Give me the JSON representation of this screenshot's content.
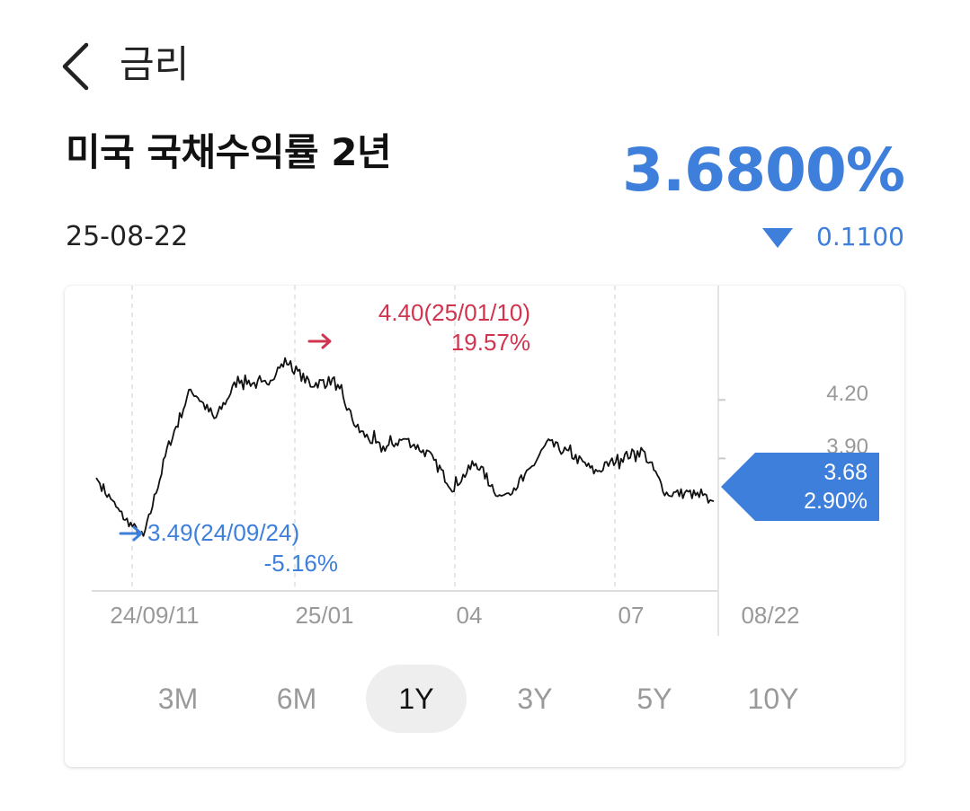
{
  "header": {
    "title": "금리",
    "back_icon": "chevron-left-icon"
  },
  "instrument": {
    "name": "미국 국채수익률 2년",
    "date": "25-08-22",
    "price": "3.6800%",
    "change": "0.1100",
    "change_direction": "down",
    "change_icon": "triangle-down-icon"
  },
  "colors": {
    "accent_blue": "#3d7fdb",
    "high_red": "#d0344e",
    "line": "#111111",
    "grid": "#dddddd"
  },
  "chart": {
    "high_annotation": {
      "value_label": "4.40(25/01/10)",
      "pct_label": "19.57%"
    },
    "low_annotation": {
      "value_label": "3.49(24/09/24)",
      "pct_label": "-5.16%"
    },
    "current_badge": {
      "value": "3.68",
      "pct": "2.90%"
    },
    "y_ticks": [
      "4.20",
      "3.90"
    ],
    "x_ticks": [
      "24/09/11",
      "25/01",
      "04",
      "07",
      "08/22"
    ]
  },
  "chart_data": {
    "type": "line",
    "title": "",
    "xlabel": "",
    "ylabel": "",
    "ylim": [
      3.22,
      4.51
    ],
    "y_ticks": [
      4.2,
      3.9
    ],
    "x_ticks": [
      "24/09/11",
      "25/01",
      "04",
      "07",
      "08/22"
    ],
    "series": [
      {
        "x": [
          "24/08",
          "24/09/11",
          "24/09/24",
          "24/10/10",
          "24/11/10",
          "24/11/25",
          "24/12/10",
          "24/12/24",
          "25/01/10",
          "25/01/24",
          "25/02/10",
          "25/02/24",
          "25/03/10",
          "25/03/24",
          "25/04/04",
          "25/04/10",
          "25/04/24",
          "25/05/07",
          "25/05/24",
          "25/06/10",
          "25/06/24",
          "25/07/01",
          "25/07/10",
          "25/07/24",
          "25/07/31",
          "25/08/10",
          "25/08/22"
        ],
        "y": [
          3.8,
          3.62,
          3.49,
          3.95,
          4.26,
          4.1,
          4.31,
          4.27,
          4.4,
          4.28,
          4.3,
          4.05,
          3.95,
          4.0,
          3.92,
          3.75,
          3.88,
          3.7,
          3.79,
          3.98,
          3.92,
          3.83,
          3.9,
          3.94,
          3.72,
          3.72,
          3.68
        ]
      }
    ],
    "high": {
      "value": 4.4,
      "date": "25/01/10",
      "pct": "19.57%"
    },
    "low": {
      "value": 3.49,
      "date": "24/09/24",
      "pct": "-5.16%"
    },
    "last": {
      "value": 3.68,
      "pct": "2.90%"
    },
    "grid": true
  },
  "ranges": [
    "3M",
    "6M",
    "1Y",
    "3Y",
    "5Y",
    "10Y"
  ],
  "active_range": "1Y"
}
